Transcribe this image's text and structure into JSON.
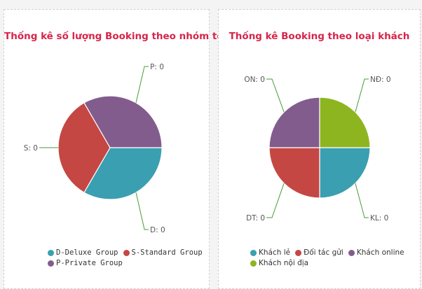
{
  "chart_data": [
    {
      "type": "pie",
      "title": "Thống kê số lượng Booking theo nhóm tour",
      "legend_position": "bottom",
      "categories": [
        "D-Deluxe Group",
        "S-Standard Group",
        "P-Private Group"
      ],
      "values": [
        0,
        0,
        0
      ],
      "slice_labels": [
        "D: 0",
        "S: 0",
        "P: 0"
      ],
      "colors": [
        "#3a9fb0",
        "#c54743",
        "#835c8e"
      ]
    },
    {
      "type": "pie",
      "title": "Thống kê Booking theo loại khách",
      "legend_position": "bottom",
      "categories": [
        "Khách lẻ",
        "Đối tác gửi",
        "Khách online",
        "Khách nội địa"
      ],
      "values": [
        0,
        0,
        0,
        0
      ],
      "slice_labels": [
        "KL: 0",
        "DT: 0",
        "ON: 0",
        "NĐ: 0"
      ],
      "colors": [
        "#3a9fb0",
        "#c54743",
        "#835c8e",
        "#8db520"
      ]
    }
  ]
}
